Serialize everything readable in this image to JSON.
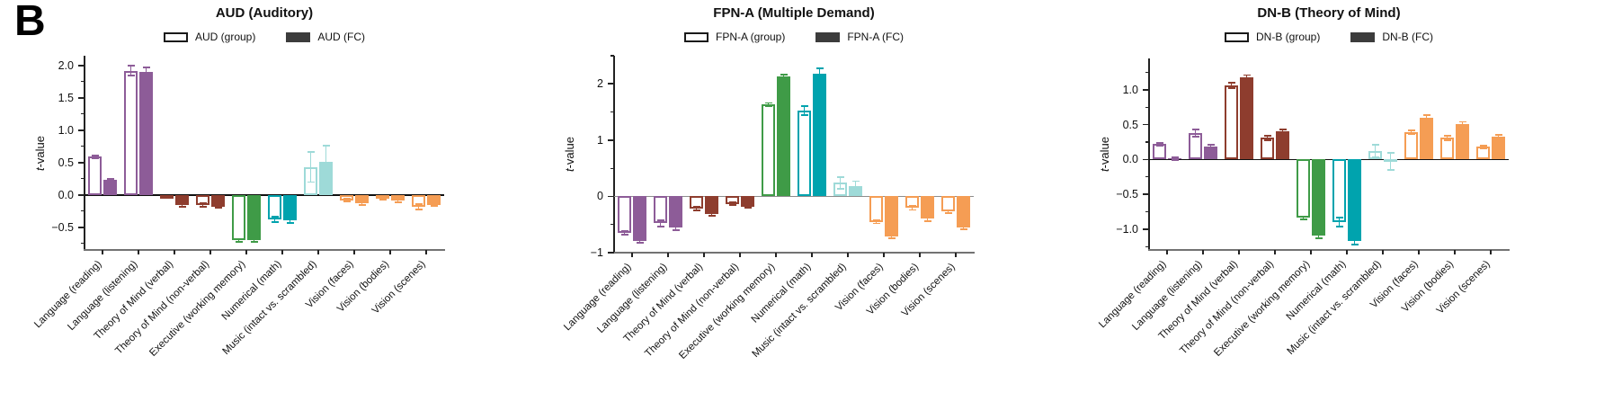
{
  "figure": {
    "panel_label": "B"
  },
  "colors": {
    "legend_fc_swatch": "#3c3c3c",
    "axis": "#222222",
    "bottom_spine": "#737373",
    "purple": "#8d5c98",
    "maroon": "#8e3d2e",
    "green": "#3f9b47",
    "teal": "#00a3ae",
    "light_cyan": "#9edad8",
    "orange": "#f59d54"
  },
  "chart_data": [
    {
      "type": "bar",
      "title": "AUD (Auditory)",
      "ylabel_italic": "t",
      "ylabel_rest": "-value",
      "legend_position": "top-center",
      "grid": false,
      "legend": [
        {
          "label": "AUD (group)",
          "style": "outline"
        },
        {
          "label": "AUD (FC)",
          "style": "filled",
          "color": "#3c3c3c"
        }
      ],
      "categories": [
        "Language (reading)",
        "Language (listening)",
        "Theory of Mind (verbal)",
        "Theory of Mind (non-verbal)",
        "Executive (working memory)",
        "Numerical (math)",
        "Music (intact vs. scrambled)",
        "Vision (faces)",
        "Vision (bodies)",
        "Vision (scenes)"
      ],
      "category_colors": [
        "#8d5c98",
        "#8d5c98",
        "#8e3d2e",
        "#8e3d2e",
        "#3f9b47",
        "#00a3ae",
        "#9edad8",
        "#f59d54",
        "#f59d54",
        "#f59d54"
      ],
      "series": [
        {
          "name": "AUD (group)",
          "style": "outline",
          "values": [
            0.59,
            1.92,
            -0.03,
            -0.15,
            -0.7,
            -0.38,
            0.43,
            -0.08,
            -0.05,
            -0.18
          ],
          "errors": [
            0.02,
            0.08,
            0.02,
            0.03,
            0.02,
            0.04,
            0.23,
            0.02,
            0.02,
            0.04
          ]
        },
        {
          "name": "AUD (FC)",
          "style": "filled",
          "values": [
            0.23,
            1.9,
            -0.16,
            -0.18,
            -0.7,
            -0.39,
            0.51,
            -0.13,
            -0.09,
            -0.15
          ],
          "errors": [
            0.02,
            0.07,
            0.02,
            0.02,
            0.02,
            0.04,
            0.25,
            0.03,
            0.02,
            0.02
          ]
        }
      ],
      "ylim": [
        -0.85,
        2.15
      ],
      "yticks": [
        2.0,
        1.5,
        1.0,
        0.5,
        0.0,
        -0.5
      ],
      "ytick_labels": [
        "2.0",
        "1.5",
        "1.0",
        "0.5",
        "0.0",
        "−0.5"
      ],
      "minor_tick_step": 0.25,
      "zero_line_color": "#111111"
    },
    {
      "type": "bar",
      "title": "FPN-A (Multiple Demand)",
      "ylabel_italic": "t",
      "ylabel_rest": "-value",
      "legend_position": "top-center",
      "grid": false,
      "legend": [
        {
          "label": "FPN-A (group)",
          "style": "outline"
        },
        {
          "label": "FPN-A (FC)",
          "style": "filled",
          "color": "#3c3c3c"
        }
      ],
      "categories": [
        "Language (reading)",
        "Language (listening)",
        "Theory of Mind (verbal)",
        "Theory of Mind (non-verbal)",
        "Executive (working memory)",
        "Numerical (math)",
        "Music (intact vs. scrambled)",
        "Vision (faces)",
        "Vision (bodies)",
        "Vision (scenes)"
      ],
      "category_colors": [
        "#8d5c98",
        "#8d5c98",
        "#8e3d2e",
        "#8e3d2e",
        "#3f9b47",
        "#00a3ae",
        "#9edad8",
        "#f59d54",
        "#f59d54",
        "#f59d54"
      ],
      "series": [
        {
          "name": "FPN-A (group)",
          "style": "outline",
          "values": [
            -0.65,
            -0.48,
            -0.22,
            -0.13,
            1.63,
            1.53,
            0.24,
            -0.45,
            -0.2,
            -0.27
          ],
          "errors": [
            0.03,
            0.06,
            0.03,
            0.02,
            0.03,
            0.08,
            0.1,
            0.03,
            0.04,
            0.03
          ]
        },
        {
          "name": "FPN-A (FC)",
          "style": "filled",
          "values": [
            -0.8,
            -0.56,
            -0.32,
            -0.18,
            2.13,
            2.18,
            0.18,
            -0.72,
            -0.4,
            -0.55
          ],
          "errors": [
            0.03,
            0.04,
            0.03,
            0.02,
            0.04,
            0.1,
            0.09,
            0.03,
            0.04,
            0.03
          ]
        }
      ],
      "ylim": [
        -1.0,
        2.5
      ],
      "yticks": [
        2,
        1,
        0,
        -1
      ],
      "ytick_labels": [
        "2",
        "1",
        "0",
        "−1"
      ],
      "minor_tick_step": 0.5,
      "zero_line_color": "#8c8c8c"
    },
    {
      "type": "bar",
      "title": "DN-B (Theory of Mind)",
      "ylabel_italic": "t",
      "ylabel_rest": "-value",
      "legend_position": "top-center",
      "grid": false,
      "legend": [
        {
          "label": "DN-B (group)",
          "style": "outline"
        },
        {
          "label": "DN-B (FC)",
          "style": "filled",
          "color": "#3c3c3c"
        }
      ],
      "categories": [
        "Language (reading)",
        "Language (listening)",
        "Theory of Mind (verbal)",
        "Theory of Mind (non-verbal)",
        "Executive (working memory)",
        "Numerical (math)",
        "Music (intact vs. scrambled)",
        "Vision (faces)",
        "Vision (bodies)",
        "Vision (scenes)"
      ],
      "category_colors": [
        "#8d5c98",
        "#8d5c98",
        "#8e3d2e",
        "#8e3d2e",
        "#3f9b47",
        "#00a3ae",
        "#9edad8",
        "#f59d54",
        "#f59d54",
        "#f59d54"
      ],
      "series": [
        {
          "name": "DN-B (group)",
          "style": "outline",
          "values": [
            0.22,
            0.38,
            1.06,
            0.31,
            -0.84,
            -0.9,
            0.12,
            0.39,
            0.31,
            0.18
          ],
          "errors": [
            0.02,
            0.05,
            0.04,
            0.03,
            0.02,
            0.06,
            0.09,
            0.03,
            0.03,
            0.02
          ]
        },
        {
          "name": "DN-B (FC)",
          "style": "filled",
          "values": [
            0.01,
            0.18,
            1.18,
            0.41,
            -1.1,
            -1.17,
            -0.03,
            0.6,
            0.51,
            0.33
          ],
          "errors": [
            0.02,
            0.03,
            0.03,
            0.02,
            0.03,
            0.05,
            0.12,
            0.04,
            0.03,
            0.02
          ]
        }
      ],
      "ylim": [
        -1.3,
        1.45
      ],
      "yticks": [
        1.0,
        0.5,
        0.0,
        -0.5,
        -1.0
      ],
      "ytick_labels": [
        "1.0",
        "0.5",
        "0.0",
        "−0.5",
        "−1.0"
      ],
      "minor_tick_step": 0.25,
      "zero_line_color": "#111111"
    }
  ]
}
